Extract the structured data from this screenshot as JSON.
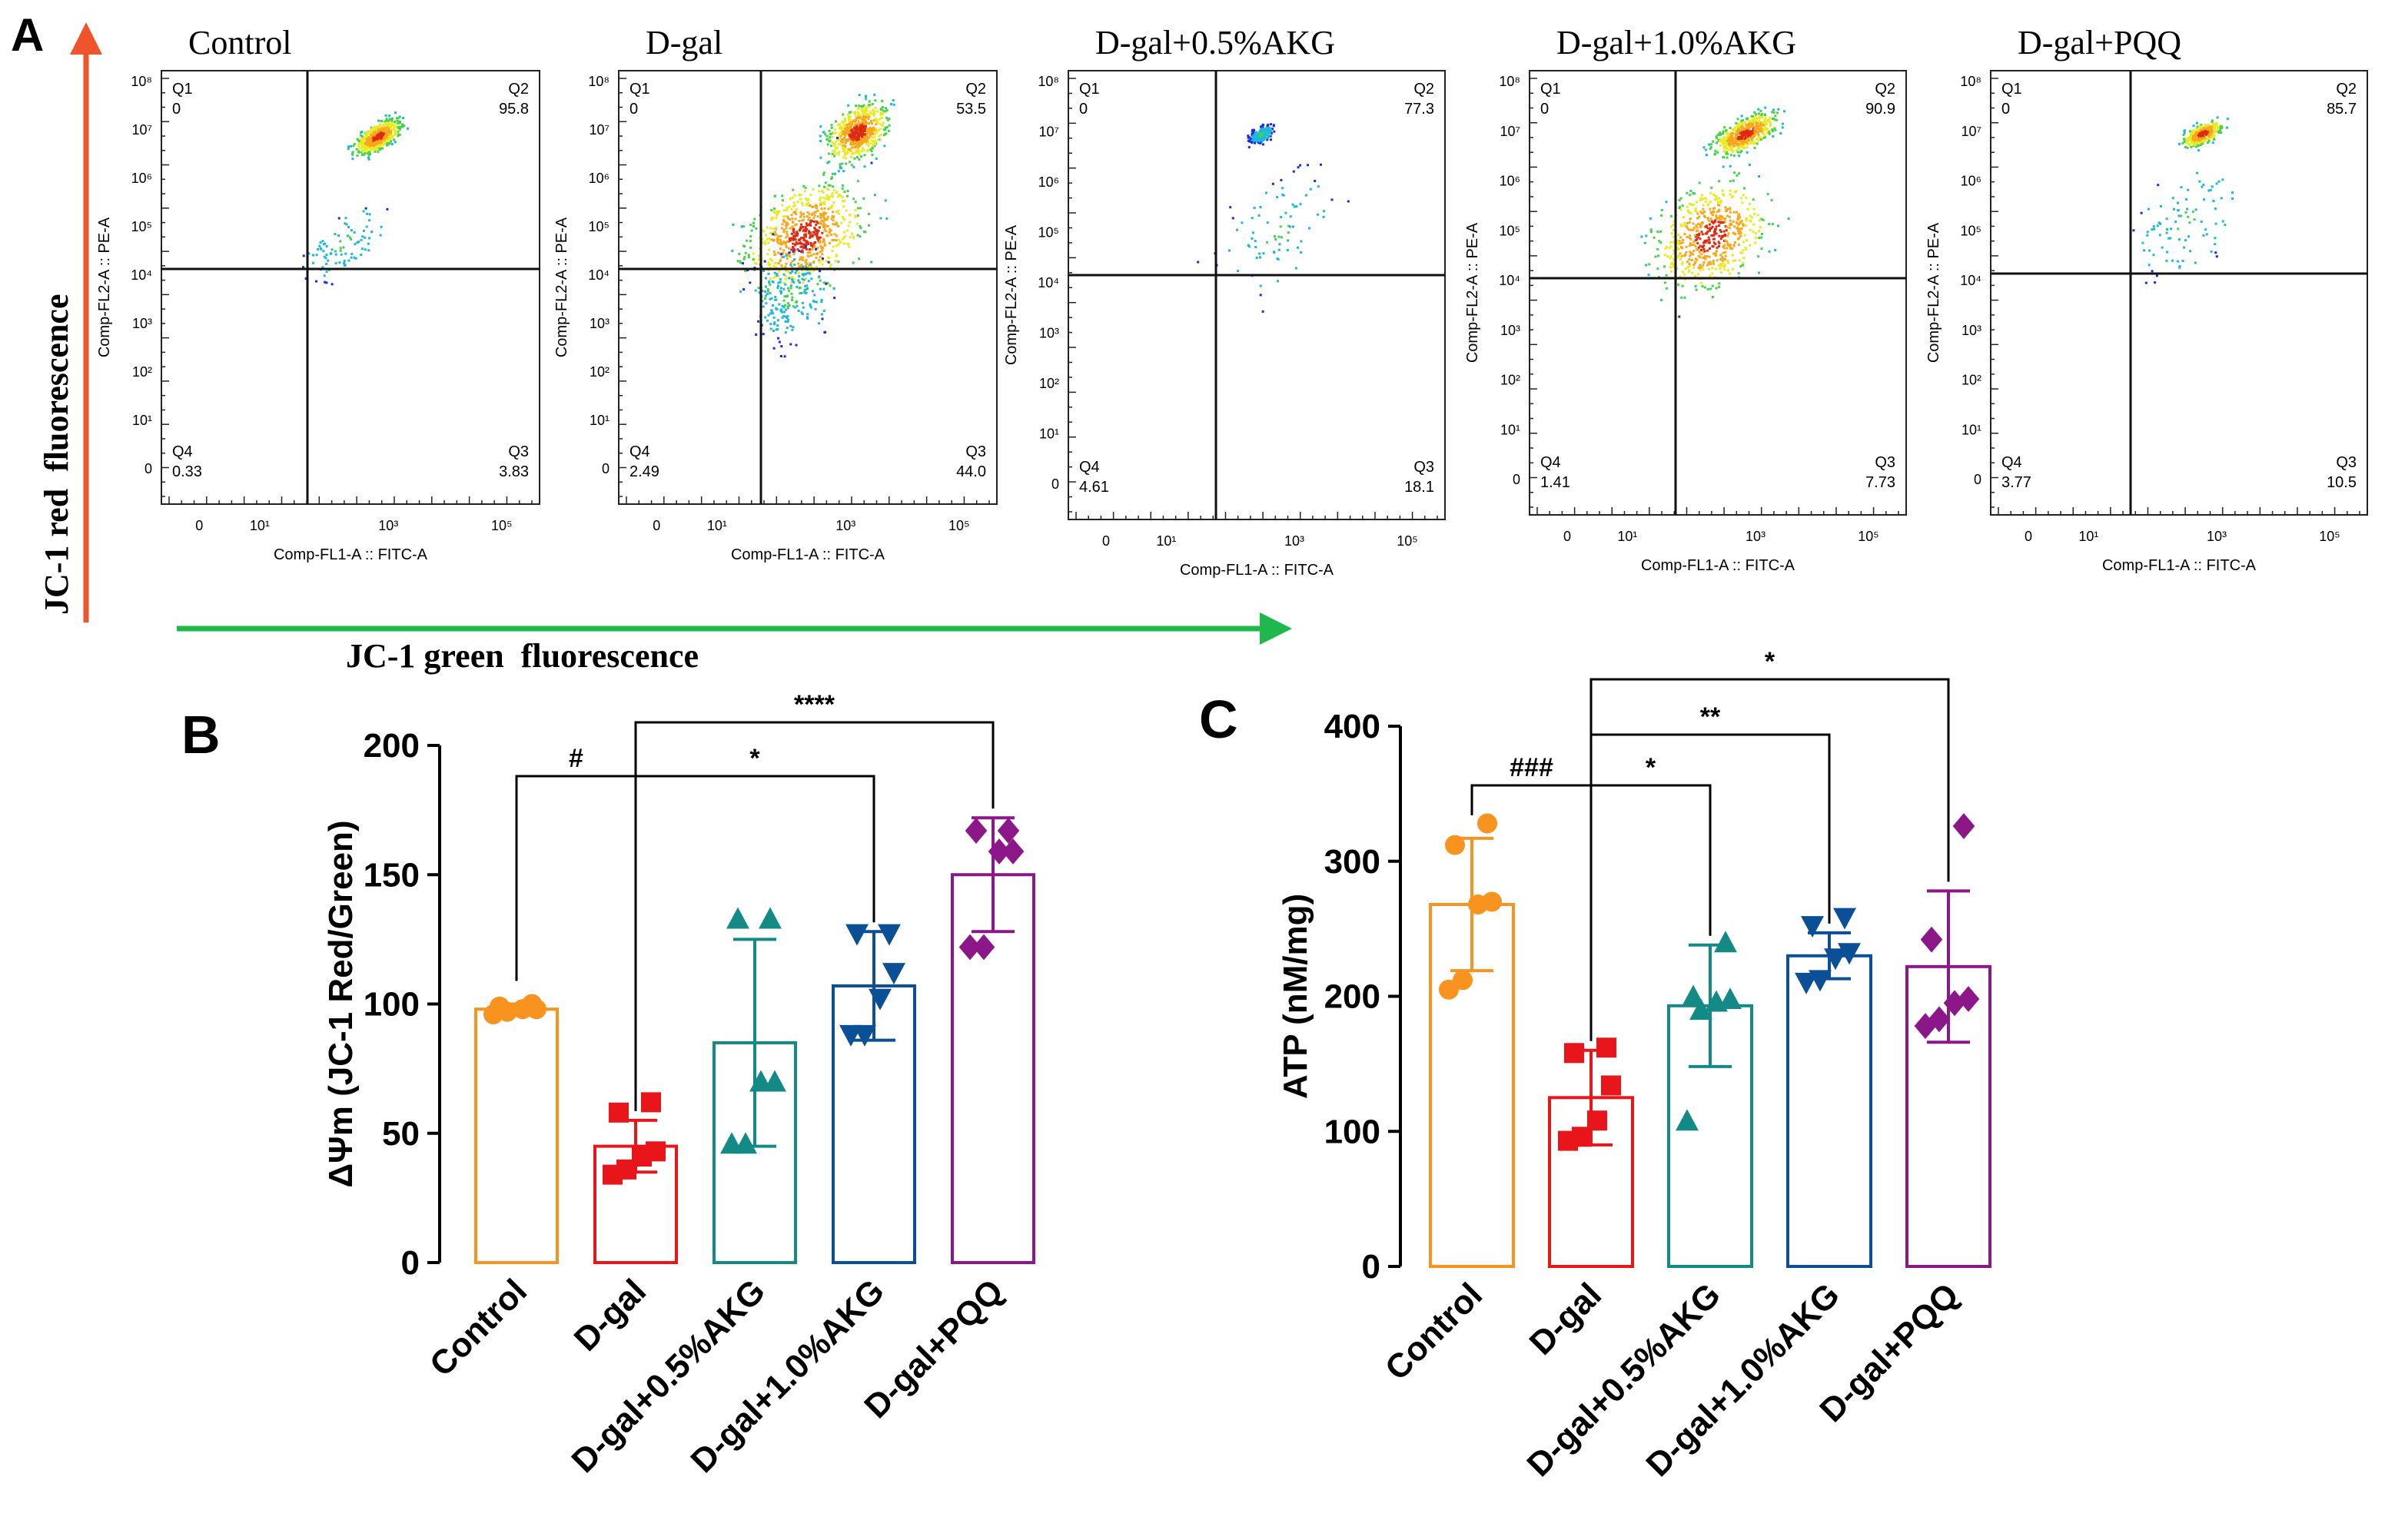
{
  "figure": {
    "panel_a_letter": "A",
    "panel_b_letter": "B",
    "panel_c_letter": "C",
    "y_arrow_label": "JC-1 red  fluorescence",
    "x_arrow_label": "JC-1 green  fluorescence",
    "colors": {
      "red_arrow": "#f0542a",
      "green_arrow": "#1fb84c",
      "control": "#f7931e",
      "dgal": "#e8151b",
      "akg05": "#148a87",
      "akg10": "#0b4f96",
      "pqq": "#8b1789"
    }
  },
  "flow": {
    "y_axis_label": "Comp-FL2-A :: PE-A",
    "x_axis_label": "Comp-FL1-A :: FITC-A",
    "y_ticks": [
      "10⁸",
      "10⁷",
      "10⁶",
      "10⁵",
      "10⁴",
      "10³",
      "10²",
      "10¹",
      "0"
    ],
    "x_ticks": [
      "0",
      "10¹",
      "10³",
      "10⁵"
    ],
    "quadrant_names": [
      "Q1",
      "Q2",
      "Q3",
      "Q4"
    ],
    "plots": [
      {
        "title": "Control",
        "q1": "0",
        "q2": "95.8",
        "q3": "3.83",
        "q4": "0.33"
      },
      {
        "title": "D-gal",
        "q1": "0",
        "q2": "53.5",
        "q3": "44.0",
        "q4": "2.49"
      },
      {
        "title": "D-gal+0.5%AKG",
        "q1": "0",
        "q2": "77.3",
        "q3": "18.1",
        "q4": "4.61"
      },
      {
        "title": "D-gal+1.0%AKG",
        "q1": "0",
        "q2": "90.9",
        "q3": "7.73",
        "q4": "1.41"
      },
      {
        "title": "D-gal+PQQ",
        "q1": "0",
        "q2": "85.7",
        "q3": "10.5",
        "q4": "3.77"
      }
    ]
  },
  "chart_data": [
    {
      "type": "bar",
      "panel": "B",
      "ylabel": "ΔΨm (JC-1 Red/Green)",
      "ylim": [
        0,
        200
      ],
      "yticks": [
        0,
        50,
        100,
        150,
        200
      ],
      "categories": [
        "Control",
        "D-gal",
        "D-gal+0.5%AKG",
        "D-gal+1.0%AKG",
        "D-gal+PQQ"
      ],
      "means": [
        98,
        45,
        85,
        107,
        150
      ],
      "sd": [
        2,
        10,
        40,
        21,
        22
      ],
      "points": [
        [
          96,
          97,
          98,
          98,
          99,
          100
        ],
        [
          34,
          36,
          41,
          43,
          58,
          62
        ],
        [
          46,
          46,
          70,
          70,
          133,
          133
        ],
        [
          88,
          88,
          102,
          112,
          127,
          127
        ],
        [
          122,
          122,
          159,
          159,
          167,
          167
        ]
      ],
      "markers": [
        "circle",
        "square",
        "triangle",
        "triangle-down",
        "diamond"
      ],
      "significance": [
        {
          "from": 0,
          "to": 1,
          "label": "#"
        },
        {
          "from": 1,
          "to": 3,
          "label": "*"
        },
        {
          "from": 1,
          "to": 4,
          "label": "****"
        }
      ]
    },
    {
      "type": "bar",
      "panel": "C",
      "ylabel": "ATP (nM/mg)",
      "ylim": [
        0,
        400
      ],
      "yticks": [
        0,
        100,
        200,
        300,
        400
      ],
      "categories": [
        "Control",
        "D-gal",
        "D-gal+0.5%AKG",
        "D-gal+1.0%AKG",
        "D-gal+PQQ"
      ],
      "means": [
        268,
        125,
        193,
        230,
        222
      ],
      "sd": [
        49,
        35,
        45,
        17,
        56
      ],
      "points": [
        [
          205,
          212,
          268,
          270,
          312,
          328
        ],
        [
          93,
          96,
          108,
          134,
          158,
          162
        ],
        [
          108,
          190,
          196,
          198,
          200,
          240
        ],
        [
          210,
          212,
          228,
          232,
          252,
          258
        ],
        [
          178,
          183,
          195,
          198,
          242,
          326
        ]
      ],
      "markers": [
        "circle",
        "square",
        "triangle",
        "triangle-down",
        "diamond"
      ],
      "significance": [
        {
          "from": 0,
          "to": 1,
          "label": "###"
        },
        {
          "from": 1,
          "to": 2,
          "label": "*"
        },
        {
          "from": 1,
          "to": 3,
          "label": "**"
        },
        {
          "from": 1,
          "to": 4,
          "label": "*"
        }
      ]
    }
  ]
}
